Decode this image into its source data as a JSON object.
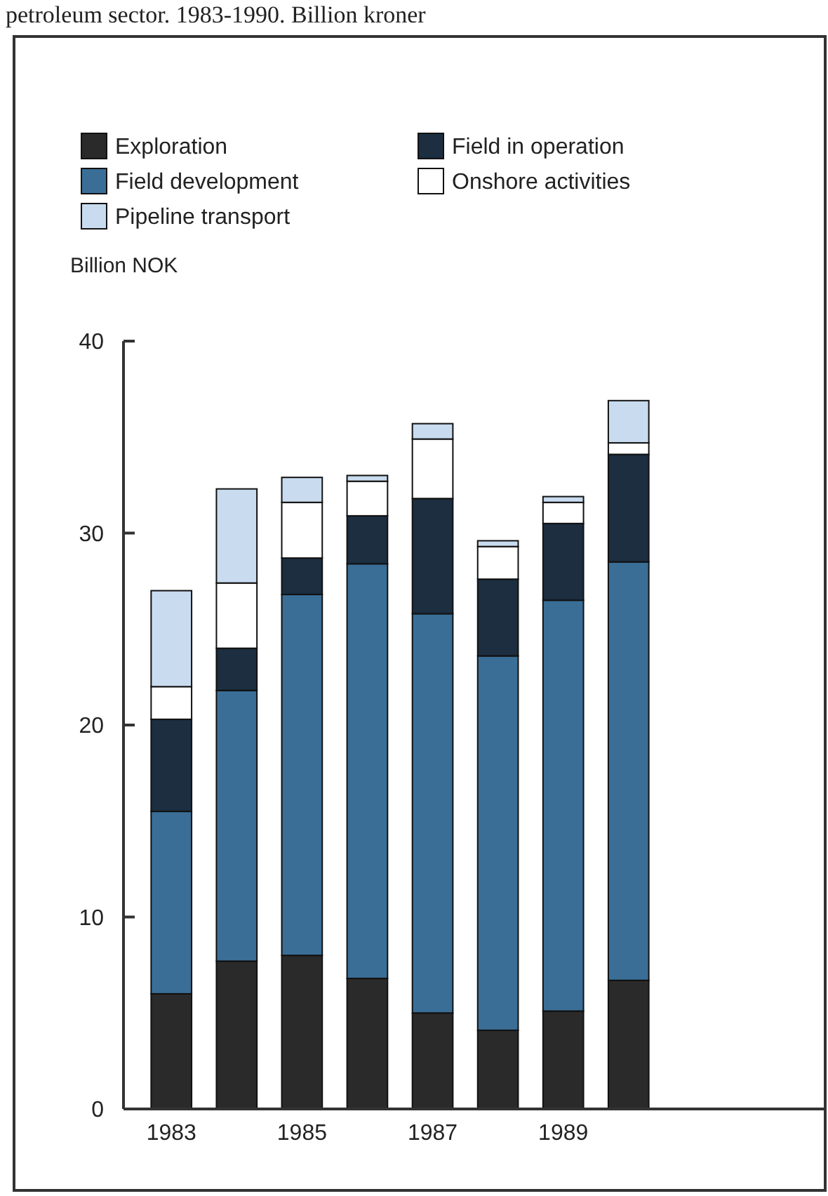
{
  "chart_data": {
    "type": "bar",
    "title": "petroleum sector. 1983-1990. Billion kroner",
    "ylabel": "Billion NOK",
    "stacked": true,
    "legend": "top left",
    "categories": [
      "1983",
      null,
      "1985",
      null,
      "1987",
      null,
      "1989",
      null
    ],
    "series": [
      {
        "name": "Exploration",
        "color": "#2a2a2a",
        "values": [
          6.0,
          7.7,
          8.0,
          6.8,
          5.0,
          4.1,
          5.1,
          6.7
        ]
      },
      {
        "name": "Field development",
        "color": "#3a6e96",
        "values": [
          9.5,
          14.1,
          18.8,
          21.6,
          20.8,
          19.5,
          21.4,
          21.8
        ]
      },
      {
        "name": "Field in operation",
        "color": "#1c2e40",
        "values": [
          4.8,
          2.2,
          1.9,
          2.5,
          6.0,
          4.0,
          4.0,
          5.6
        ]
      },
      {
        "name": "Onshore activities",
        "color": "#ffffff",
        "values": [
          1.7,
          3.4,
          2.9,
          1.8,
          3.1,
          1.7,
          1.1,
          0.6
        ]
      },
      {
        "name": "Pipeline transport",
        "color": "#c9dcef",
        "values": [
          5.0,
          4.9,
          1.3,
          0.3,
          0.8,
          0.3,
          0.3,
          2.2
        ]
      }
    ],
    "ylim": [
      0,
      40
    ],
    "yticks": [
      0,
      10,
      20,
      30,
      40
    ],
    "grid": false
  }
}
